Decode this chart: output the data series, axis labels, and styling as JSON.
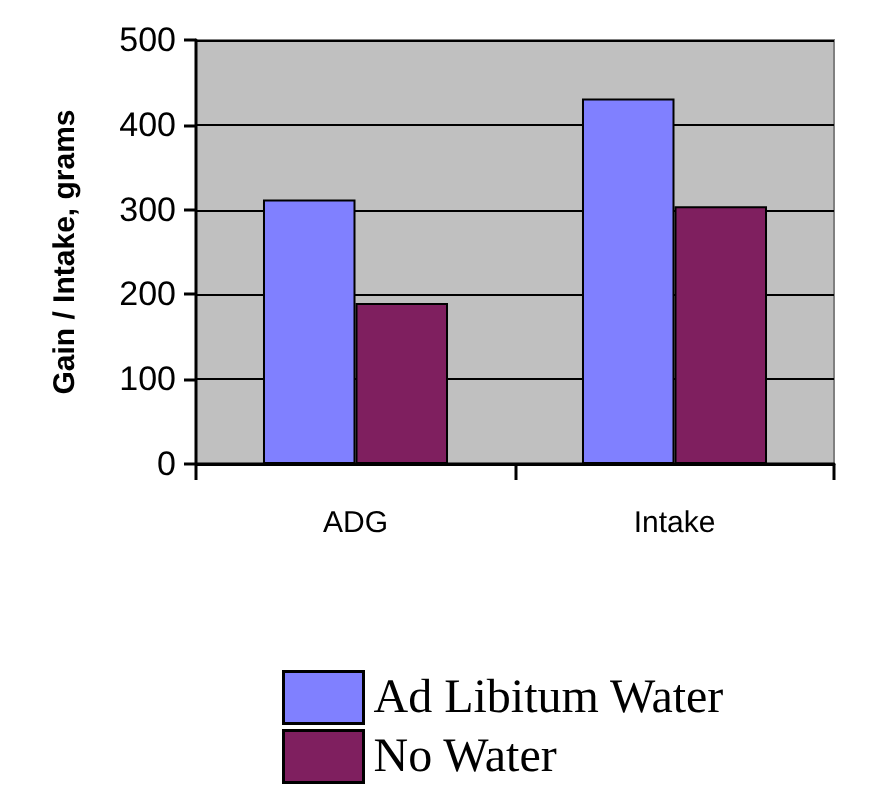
{
  "chart_data": {
    "type": "bar",
    "ylabel": "Gain / Intake, grams",
    "categories": [
      "ADG",
      "Intake"
    ],
    "series": [
      {
        "name": "Ad Libitum Water",
        "color": "#8080ff",
        "values": [
          312,
          431
        ]
      },
      {
        "name": "No Water",
        "color": "#7f1f5f",
        "values": [
          190,
          304
        ]
      }
    ],
    "ylim": [
      0,
      500
    ],
    "yticks": [
      0,
      100,
      200,
      300,
      400,
      500
    ],
    "grid": "y",
    "legend": "bottom"
  }
}
